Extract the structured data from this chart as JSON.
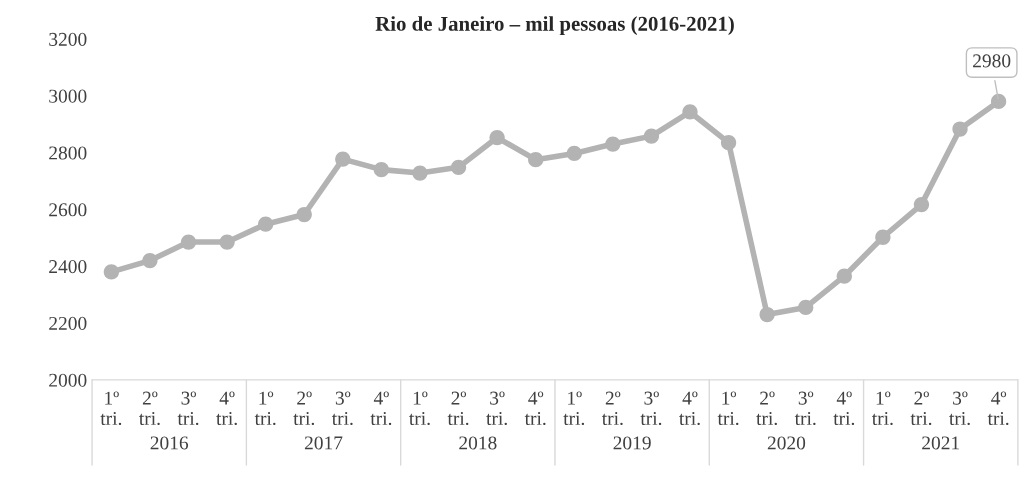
{
  "chart_data": {
    "type": "line",
    "title": "Rio de Janeiro – mil pessoas (2016-2021)",
    "categories": [
      "1º\ntri.",
      "2º\ntri.",
      "3º\ntri.",
      "4º\ntri.",
      "1º\ntri.",
      "2º\ntri.",
      "3º\ntri.",
      "4º\ntri.",
      "1º\ntri.",
      "2º\ntri.",
      "3º\ntri.",
      "4º\ntri.",
      "1º\ntri.",
      "2º\ntri.",
      "3º\ntri.",
      "4º\ntri.",
      "1º\ntri.",
      "2º\ntri.",
      "3º\ntri.",
      "4º\ntri.",
      "1º\ntri.",
      "2º\ntri.",
      "3º\ntri.",
      "4º\ntri."
    ],
    "series": [
      {
        "color": "#b3b3b3",
        "values": [
          2380,
          2420,
          2485,
          2485,
          2548,
          2582,
          2777,
          2740,
          2728,
          2748,
          2853,
          2775,
          2797,
          2830,
          2858,
          2943,
          2835,
          2230,
          2255,
          2365,
          2502,
          2617,
          2883,
          2980
        ],
        "value_labels": [
          null,
          null,
          null,
          null,
          null,
          null,
          null,
          null,
          null,
          null,
          null,
          null,
          null,
          null,
          null,
          null,
          null,
          null,
          null,
          null,
          null,
          null,
          null,
          "2980"
        ]
      }
    ],
    "annotations": [
      "2016",
      "2017",
      "2018",
      "2019",
      "2020",
      "2021"
    ],
    "ylim": [
      2000,
      3200
    ],
    "yticks": [
      2000,
      2200,
      2400,
      2600,
      2800,
      3000,
      3200
    ],
    "grid": false,
    "legend": false,
    "marker": "circle",
    "line_style": "solid"
  }
}
